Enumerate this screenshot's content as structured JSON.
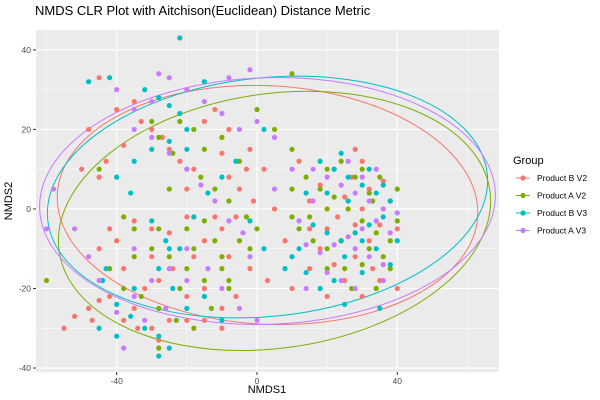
{
  "chart_data": {
    "type": "scatter",
    "title": "NMDS CLR Plot with Aitchison(Euclidean) Distance Metric",
    "xlabel": "NMDS1",
    "ylabel": "NMDS2",
    "xlim": [
      -63,
      69
    ],
    "ylim": [
      -41,
      45
    ],
    "x_ticks": [
      -40,
      0,
      40
    ],
    "y_ticks": [
      -40,
      -20,
      0,
      20,
      40
    ],
    "grid": true,
    "legend": {
      "title": "Group",
      "placement": "right"
    },
    "series": [
      {
        "name": "Product B V2",
        "color": "#F8766D",
        "ellipse": {
          "cx": 3,
          "cy": 1,
          "rx": 60,
          "ry": 30,
          "angle": -3
        }
      },
      {
        "name": "Product A V2",
        "color": "#7CAE00",
        "ellipse": {
          "cx": 5,
          "cy": -3,
          "rx": 62,
          "ry": 32,
          "angle": 8
        }
      },
      {
        "name": "Product B V3",
        "color": "#00BFC4",
        "ellipse": {
          "cx": 3,
          "cy": 3,
          "rx": 63,
          "ry": 30,
          "angle": 6
        }
      },
      {
        "name": "Product A V3",
        "color": "#C77CFF",
        "ellipse": {
          "cx": 3,
          "cy": 2,
          "rx": 65,
          "ry": 31,
          "angle": 2
        }
      }
    ],
    "points": [
      [
        -45,
        33,
        0
      ],
      [
        -40,
        25,
        0
      ],
      [
        -35,
        27,
        0
      ],
      [
        -33,
        22,
        0
      ],
      [
        -48,
        20,
        0
      ],
      [
        -50,
        10,
        0
      ],
      [
        -45,
        8,
        0
      ],
      [
        -43,
        12,
        0
      ],
      [
        -38,
        16,
        0
      ],
      [
        -30,
        20,
        0
      ],
      [
        -27,
        18,
        0
      ],
      [
        -25,
        15,
        0
      ],
      [
        -22,
        12,
        0
      ],
      [
        -18,
        10,
        0
      ],
      [
        -15,
        22,
        0
      ],
      [
        -12,
        25,
        0
      ],
      [
        -10,
        14,
        0
      ],
      [
        -8,
        8,
        0
      ],
      [
        -5,
        5,
        0
      ],
      [
        -3,
        10,
        0
      ],
      [
        -2,
        15,
        0
      ],
      [
        2,
        10,
        0
      ],
      [
        5,
        0,
        0
      ],
      [
        -1,
        2,
        0
      ],
      [
        -6,
        -2,
        0
      ],
      [
        -10,
        -5,
        0
      ],
      [
        -15,
        -8,
        0
      ],
      [
        -20,
        -2,
        0
      ],
      [
        -25,
        -6,
        0
      ],
      [
        -30,
        -5,
        0
      ],
      [
        -35,
        -3,
        0
      ],
      [
        -40,
        -8,
        0
      ],
      [
        -45,
        -10,
        0
      ],
      [
        -38,
        -15,
        0
      ],
      [
        -32,
        -20,
        0
      ],
      [
        -28,
        -18,
        0
      ],
      [
        -24,
        -15,
        0
      ],
      [
        -20,
        -22,
        0
      ],
      [
        -15,
        -20,
        0
      ],
      [
        -10,
        -25,
        0
      ],
      [
        -6,
        -22,
        0
      ],
      [
        -2,
        -15,
        0
      ],
      [
        3,
        -18,
        0
      ],
      [
        -48,
        -25,
        0
      ],
      [
        -52,
        -27,
        0
      ],
      [
        -45,
        -23,
        0
      ],
      [
        -38,
        -28,
        0
      ],
      [
        -34,
        -30,
        0
      ],
      [
        -28,
        -33,
        0
      ],
      [
        -25,
        -28,
        0
      ],
      [
        -15,
        -28,
        0
      ],
      [
        -10,
        -30,
        0
      ],
      [
        -35,
        -25,
        0
      ],
      [
        -42,
        -22,
        0
      ],
      [
        -47,
        -28,
        0
      ],
      [
        -55,
        -30,
        0
      ],
      [
        -30,
        -12,
        0
      ],
      [
        -18,
        -12,
        0
      ],
      [
        -8,
        -12,
        0
      ],
      [
        -12,
        -2,
        0
      ],
      [
        20,
        -5,
        0
      ],
      [
        23,
        -2,
        0
      ],
      [
        25,
        3,
        0
      ],
      [
        28,
        -4,
        0
      ],
      [
        30,
        0,
        0
      ],
      [
        32,
        5,
        0
      ],
      [
        27,
        8,
        0
      ],
      [
        22,
        10,
        0
      ],
      [
        18,
        6,
        0
      ],
      [
        15,
        2,
        0
      ],
      [
        15,
        -5,
        0
      ],
      [
        18,
        -10,
        0
      ],
      [
        22,
        -14,
        0
      ],
      [
        28,
        -12,
        0
      ],
      [
        32,
        -8,
        0
      ],
      [
        35,
        -4,
        0
      ],
      [
        38,
        2,
        0
      ],
      [
        36,
        7,
        0
      ],
      [
        40,
        -5,
        0
      ],
      [
        33,
        -15,
        0
      ],
      [
        25,
        -18,
        0
      ],
      [
        20,
        -22,
        0
      ],
      [
        30,
        -22,
        0
      ],
      [
        35,
        -18,
        0
      ],
      [
        15,
        -15,
        0
      ],
      [
        10,
        -20,
        0
      ],
      [
        8,
        -8,
        0
      ],
      [
        12,
        12,
        0
      ],
      [
        30,
        12,
        0
      ],
      [
        28,
        15,
        0
      ],
      [
        40,
        -20,
        0
      ],
      [
        -20,
        -28,
        0
      ],
      [
        -30,
        -30,
        0
      ],
      [
        -42,
        -5,
        0
      ],
      [
        -8,
        20,
        0
      ],
      [
        -20,
        5,
        0
      ],
      [
        -38,
        -2,
        1
      ],
      [
        -35,
        -5,
        1
      ],
      [
        -30,
        -10,
        1
      ],
      [
        -25,
        -12,
        1
      ],
      [
        -20,
        -15,
        1
      ],
      [
        -15,
        -18,
        1
      ],
      [
        -10,
        -12,
        1
      ],
      [
        -5,
        -8,
        1
      ],
      [
        0,
        -5,
        1
      ],
      [
        -3,
        -2,
        1
      ],
      [
        -8,
        2,
        1
      ],
      [
        -12,
        5,
        1
      ],
      [
        -16,
        8,
        1
      ],
      [
        -20,
        10,
        1
      ],
      [
        -24,
        14,
        1
      ],
      [
        -28,
        18,
        1
      ],
      [
        -30,
        22,
        1
      ],
      [
        -22,
        22,
        1
      ],
      [
        -18,
        20,
        1
      ],
      [
        -15,
        15,
        1
      ],
      [
        -10,
        18,
        1
      ],
      [
        0,
        25,
        1
      ],
      [
        5,
        20,
        1
      ],
      [
        10,
        15,
        1
      ],
      [
        14,
        8,
        1
      ],
      [
        10,
        5,
        1
      ],
      [
        -42,
        -15,
        1
      ],
      [
        -38,
        -20,
        1
      ],
      [
        -33,
        -22,
        1
      ],
      [
        -28,
        -25,
        1
      ],
      [
        -23,
        -28,
        1
      ],
      [
        -28,
        -35,
        1
      ],
      [
        -18,
        -30,
        1
      ],
      [
        -13,
        -25,
        1
      ],
      [
        -8,
        -20,
        1
      ],
      [
        -60,
        -18,
        1
      ],
      [
        -20,
        -5,
        1
      ],
      [
        -15,
        -3,
        1
      ],
      [
        -25,
        5,
        1
      ],
      [
        -10,
        -15,
        1
      ],
      [
        18,
        5,
        1
      ],
      [
        22,
        3,
        1
      ],
      [
        26,
        0,
        1
      ],
      [
        30,
        -3,
        1
      ],
      [
        34,
        -6,
        1
      ],
      [
        38,
        -8,
        1
      ],
      [
        36,
        0,
        1
      ],
      [
        32,
        4,
        1
      ],
      [
        28,
        8,
        1
      ],
      [
        24,
        12,
        1
      ],
      [
        20,
        -10,
        1
      ],
      [
        24,
        -8,
        1
      ],
      [
        28,
        -6,
        1
      ],
      [
        32,
        -10,
        1
      ],
      [
        36,
        -12,
        1
      ],
      [
        40,
        -3,
        1
      ],
      [
        30,
        -14,
        1
      ],
      [
        25,
        -15,
        1
      ],
      [
        20,
        -15,
        1
      ],
      [
        16,
        -8,
        1
      ],
      [
        15,
        -2,
        1
      ],
      [
        12,
        -5,
        1
      ],
      [
        35,
        8,
        1
      ],
      [
        30,
        10,
        1
      ],
      [
        20,
        10,
        1
      ],
      [
        38,
        -15,
        1
      ],
      [
        34,
        -20,
        1
      ],
      [
        27,
        -20,
        1
      ],
      [
        40,
        5,
        1
      ],
      [
        10,
        -2,
        1
      ],
      [
        -2,
        -10,
        1
      ],
      [
        -35,
        -12,
        1
      ],
      [
        -45,
        10,
        1
      ],
      [
        -5,
        12,
        1
      ],
      [
        -28,
        -5,
        1
      ],
      [
        -18,
        -10,
        1
      ],
      [
        -12,
        -8,
        1
      ],
      [
        33,
        2,
        1
      ],
      [
        20,
        0,
        1
      ],
      [
        -8,
        -18,
        1
      ],
      [
        10,
        34,
        1
      ],
      [
        -22,
        -20,
        1
      ],
      [
        -48,
        32,
        2
      ],
      [
        -42,
        33,
        2
      ],
      [
        -28,
        28,
        2
      ],
      [
        -25,
        26,
        2
      ],
      [
        -22,
        24,
        2
      ],
      [
        -20,
        20,
        2
      ],
      [
        -25,
        17,
        2
      ],
      [
        -30,
        15,
        2
      ],
      [
        -35,
        12,
        2
      ],
      [
        -40,
        8,
        2
      ],
      [
        -36,
        4,
        2
      ],
      [
        -30,
        -3,
        2
      ],
      [
        -26,
        -8,
        2
      ],
      [
        -22,
        -10,
        2
      ],
      [
        -18,
        -2,
        2
      ],
      [
        -14,
        4,
        2
      ],
      [
        -10,
        8,
        2
      ],
      [
        -6,
        12,
        2
      ],
      [
        -2,
        -3,
        2
      ],
      [
        2,
        -10,
        2
      ],
      [
        8,
        -15,
        2
      ],
      [
        12,
        -10,
        2
      ],
      [
        -44,
        -18,
        2
      ],
      [
        -40,
        -24,
        2
      ],
      [
        -36,
        -27,
        2
      ],
      [
        -32,
        -30,
        2
      ],
      [
        -28,
        -32,
        2
      ],
      [
        -25,
        -35,
        2
      ],
      [
        -40,
        -32,
        2
      ],
      [
        -45,
        -30,
        2
      ],
      [
        -35,
        -20,
        2
      ],
      [
        -28,
        -15,
        2
      ],
      [
        -24,
        -20,
        2
      ],
      [
        -20,
        -25,
        2
      ],
      [
        -15,
        -22,
        2
      ],
      [
        -10,
        -28,
        2
      ],
      [
        -22,
        43,
        2
      ],
      [
        -32,
        30,
        2
      ],
      [
        -15,
        32,
        2
      ],
      [
        -25,
        -10,
        2
      ],
      [
        18,
        12,
        2
      ],
      [
        22,
        10,
        2
      ],
      [
        26,
        8,
        2
      ],
      [
        30,
        6,
        2
      ],
      [
        34,
        4,
        2
      ],
      [
        38,
        2,
        2
      ],
      [
        36,
        -2,
        2
      ],
      [
        32,
        -4,
        2
      ],
      [
        28,
        -6,
        2
      ],
      [
        24,
        -8,
        2
      ],
      [
        20,
        -6,
        2
      ],
      [
        16,
        -4,
        2
      ],
      [
        14,
        4,
        2
      ],
      [
        20,
        4,
        2
      ],
      [
        26,
        2,
        2
      ],
      [
        30,
        -8,
        2
      ],
      [
        34,
        -10,
        2
      ],
      [
        38,
        -14,
        2
      ],
      [
        30,
        -16,
        2
      ],
      [
        25,
        -12,
        2
      ],
      [
        22,
        -18,
        2
      ],
      [
        18,
        -20,
        2
      ],
      [
        14,
        -16,
        2
      ],
      [
        10,
        -12,
        2
      ],
      [
        40,
        -8,
        2
      ],
      [
        36,
        6,
        2
      ],
      [
        32,
        10,
        2
      ],
      [
        24,
        14,
        2
      ],
      [
        35,
        -25,
        2
      ],
      [
        25,
        -24,
        2
      ],
      [
        -20,
        15,
        2
      ],
      [
        -28,
        -37,
        2
      ],
      [
        -43,
        -15,
        2
      ],
      [
        2,
        20,
        2
      ],
      [
        -40,
        30,
        3
      ],
      [
        -35,
        25,
        3
      ],
      [
        -30,
        27,
        3
      ],
      [
        -25,
        33,
        3
      ],
      [
        -20,
        30,
        3
      ],
      [
        -15,
        27,
        3
      ],
      [
        -10,
        24,
        3
      ],
      [
        -5,
        20,
        3
      ],
      [
        0,
        22,
        3
      ],
      [
        5,
        18,
        3
      ],
      [
        -35,
        20,
        3
      ],
      [
        -30,
        18,
        3
      ],
      [
        -25,
        14,
        3
      ],
      [
        -20,
        10,
        3
      ],
      [
        -16,
        6,
        3
      ],
      [
        -12,
        2,
        3
      ],
      [
        -8,
        -3,
        3
      ],
      [
        -4,
        -6,
        3
      ],
      [
        -20,
        -10,
        3
      ],
      [
        -25,
        -15,
        3
      ],
      [
        -30,
        -18,
        3
      ],
      [
        -35,
        -22,
        3
      ],
      [
        -40,
        -26,
        3
      ],
      [
        -45,
        -18,
        3
      ],
      [
        -48,
        -12,
        3
      ],
      [
        -52,
        -5,
        3
      ],
      [
        -58,
        5,
        3
      ],
      [
        -60,
        -5,
        3
      ],
      [
        -38,
        -35,
        3
      ],
      [
        -32,
        -28,
        3
      ],
      [
        -26,
        -25,
        3
      ],
      [
        -20,
        -18,
        3
      ],
      [
        -14,
        -15,
        3
      ],
      [
        -10,
        -20,
        3
      ],
      [
        -5,
        -25,
        3
      ],
      [
        0,
        -28,
        3
      ],
      [
        -2,
        35,
        3
      ],
      [
        -28,
        34,
        3
      ],
      [
        -8,
        33,
        3
      ],
      [
        -35,
        -10,
        3
      ],
      [
        16,
        10,
        3
      ],
      [
        20,
        8,
        3
      ],
      [
        24,
        6,
        3
      ],
      [
        28,
        4,
        3
      ],
      [
        32,
        2,
        3
      ],
      [
        36,
        0,
        3
      ],
      [
        34,
        -3,
        3
      ],
      [
        30,
        -5,
        3
      ],
      [
        26,
        -7,
        3
      ],
      [
        22,
        -9,
        3
      ],
      [
        18,
        -11,
        3
      ],
      [
        14,
        -9,
        3
      ],
      [
        12,
        -3,
        3
      ],
      [
        16,
        2,
        3
      ],
      [
        28,
        -10,
        3
      ],
      [
        32,
        -12,
        3
      ],
      [
        36,
        -14,
        3
      ],
      [
        38,
        -6,
        3
      ],
      [
        40,
        -1,
        3
      ],
      [
        30,
        8,
        3
      ],
      [
        34,
        10,
        3
      ],
      [
        26,
        12,
        3
      ],
      [
        20,
        -16,
        3
      ],
      [
        24,
        -18,
        3
      ],
      [
        28,
        -20,
        3
      ],
      [
        36,
        -18,
        3
      ],
      [
        14,
        -20,
        3
      ],
      [
        -2,
        -12,
        3
      ],
      [
        10,
        10,
        3
      ],
      [
        5,
        5,
        3
      ]
    ]
  }
}
